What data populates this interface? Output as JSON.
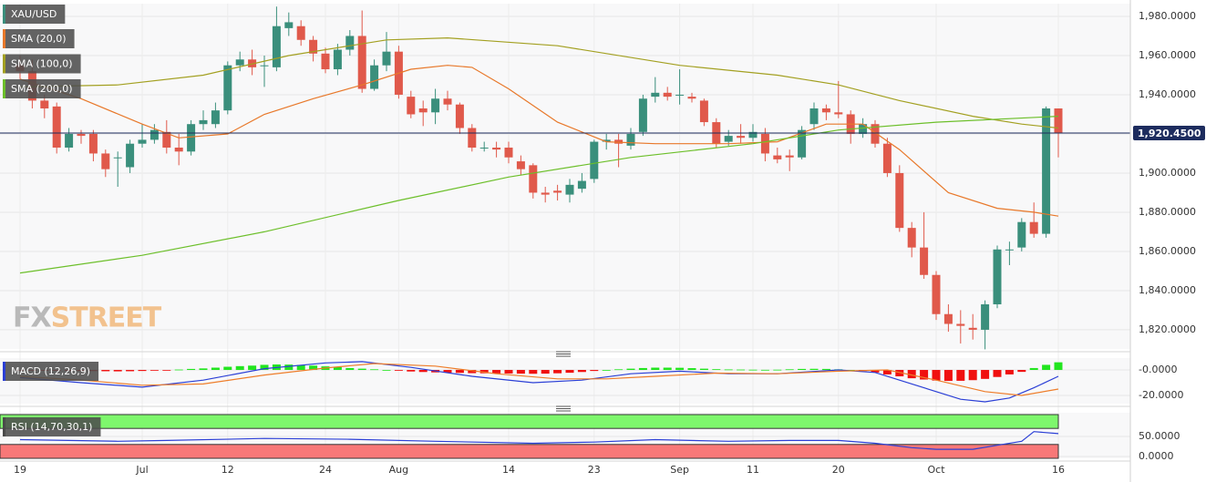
{
  "chart_data": [
    {
      "type": "candlestick",
      "title": "XAU/USD",
      "categories": [
        "19",
        null,
        null,
        null,
        null,
        null,
        null,
        null,
        null,
        null,
        "Jul",
        null,
        null,
        null,
        null,
        null,
        null,
        "12",
        null,
        null,
        null,
        null,
        null,
        null,
        null,
        "24",
        null,
        null,
        null,
        null,
        null,
        "Aug",
        null,
        null,
        null,
        null,
        null,
        null,
        null,
        null,
        "14",
        null,
        null,
        null,
        null,
        null,
        null,
        "23",
        null,
        null,
        null,
        null,
        null,
        null,
        "Sep",
        null,
        null,
        null,
        null,
        null,
        "11",
        null,
        null,
        null,
        null,
        null,
        null,
        "20",
        null,
        null,
        null,
        null,
        null,
        null,
        null,
        "Oct",
        null,
        null,
        null,
        null,
        null,
        null,
        null,
        null,
        null,
        "16"
      ],
      "open": [
        1955,
        1952,
        1937,
        1934,
        1913,
        1920,
        1920,
        1910,
        1908,
        1903,
        1915,
        1917,
        1921,
        1913,
        1911,
        1925,
        1925,
        1932,
        1955,
        1958,
        1955,
        1954,
        1974,
        1975,
        1968,
        1961,
        1953,
        1963,
        1970,
        1943,
        1955,
        1962,
        1939,
        1933,
        1931,
        1938,
        1935,
        1923,
        1913,
        1913,
        1913,
        1906,
        1904,
        1890,
        1891,
        1889,
        1892,
        1897,
        1916,
        1917,
        1914,
        1921,
        1939,
        1941,
        1940,
        1939,
        1937,
        1926,
        1916,
        1919,
        1918,
        1920,
        1909,
        1909,
        1908,
        1925,
        1933,
        1931,
        1930,
        1920,
        1925,
        1915,
        1900,
        1872,
        1862,
        1848,
        1828,
        1823,
        1821,
        1820,
        1833,
        1861,
        1862,
        1875,
        1869,
        1933
      ],
      "high": [
        1960,
        1958,
        1940,
        1936,
        1923,
        1922,
        1922,
        1912,
        1911,
        1917,
        1925,
        1925,
        1927,
        1920,
        1927,
        1932,
        1936,
        1957,
        1962,
        1963,
        1960,
        1985,
        1982,
        1978,
        1970,
        1964,
        1966,
        1973,
        1983,
        1958,
        1972,
        1965,
        1942,
        1937,
        1943,
        1942,
        1936,
        1925,
        1916,
        1916,
        1916,
        1909,
        1905,
        1893,
        1894,
        1897,
        1900,
        1917,
        1920,
        1920,
        1923,
        1940,
        1949,
        1944,
        1953,
        1941,
        1938,
        1928,
        1922,
        1925,
        1925,
        1923,
        1913,
        1912,
        1924,
        1936,
        1935,
        1947,
        1932,
        1928,
        1927,
        1918,
        1904,
        1875,
        1880,
        1850,
        1833,
        1830,
        1828,
        1835,
        1863,
        1865,
        1877,
        1885,
        1934,
        1933
      ],
      "low": [
        1948,
        1933,
        1928,
        1910,
        1911,
        1915,
        1906,
        1898,
        1893,
        1900,
        1913,
        1915,
        1910,
        1904,
        1909,
        1922,
        1923,
        1930,
        1952,
        1950,
        1944,
        1952,
        1970,
        1965,
        1957,
        1951,
        1950,
        1960,
        1941,
        1942,
        1952,
        1938,
        1928,
        1924,
        1925,
        1932,
        1920,
        1911,
        1911,
        1908,
        1905,
        1899,
        1887,
        1885,
        1886,
        1885,
        1890,
        1895,
        1912,
        1903,
        1912,
        1919,
        1936,
        1937,
        1935,
        1936,
        1924,
        1913,
        1914,
        1915,
        1916,
        1906,
        1905,
        1901,
        1907,
        1922,
        1927,
        1928,
        1915,
        1918,
        1913,
        1898,
        1870,
        1857,
        1846,
        1825,
        1819,
        1813,
        1815,
        1810,
        1831,
        1853,
        1860,
        1867,
        1867,
        1908
      ],
      "close": [
        1952,
        1937,
        1933,
        1913,
        1920,
        1919,
        1910,
        1902,
        1908,
        1915,
        1917,
        1922,
        1913,
        1911,
        1925,
        1927,
        1932,
        1955,
        1958,
        1954,
        1955,
        1975,
        1977,
        1968,
        1961,
        1953,
        1963,
        1970,
        1943,
        1955,
        1962,
        1940,
        1930,
        1931,
        1938,
        1935,
        1923,
        1913,
        1913,
        1912,
        1908,
        1902,
        1890,
        1889,
        1890,
        1894,
        1896,
        1916,
        1917,
        1915,
        1920,
        1938,
        1941,
        1939,
        1940,
        1938,
        1926,
        1915,
        1919,
        1918,
        1921,
        1910,
        1907,
        1908,
        1922,
        1933,
        1931,
        1930,
        1920,
        1925,
        1915,
        1900,
        1872,
        1862,
        1848,
        1828,
        1823,
        1822,
        1820,
        1833,
        1861,
        1861,
        1875,
        1869,
        1933,
        1920.45
      ],
      "up_color": "#3a8f7c",
      "down_color": "#e0594b",
      "ylim": [
        1810.2,
        1986.5
      ],
      "yticks": [
        {
          "value": 1820,
          "label": "1,820.0000"
        },
        {
          "value": 1840,
          "label": "1,840.0000"
        },
        {
          "value": 1860,
          "label": "1,860.0000"
        },
        {
          "value": 1880,
          "label": "1,880.0000"
        },
        {
          "value": 1900,
          "label": "1,900.0000"
        },
        {
          "value": 1920,
          "label": "1,920.0000"
        },
        {
          "value": 1940,
          "label": "1,940.0000"
        },
        {
          "value": 1960,
          "label": "1,960.0000"
        },
        {
          "value": 1980,
          "label": "1,980.0000"
        }
      ],
      "grid": true,
      "last_price": {
        "value": 1920.45,
        "label": "1,920.4500"
      },
      "last_price_color": "#1d2c5e",
      "lines": [
        {
          "name": "SMA (20,0)",
          "color": "#e8782a",
          "x": [
            0,
            5,
            10,
            13,
            17,
            20,
            24,
            28,
            32,
            35,
            37,
            40,
            44,
            48,
            52,
            58,
            62,
            66,
            69,
            72,
            76,
            80,
            83,
            85
          ],
          "values": [
            1948,
            1938,
            1925,
            1918,
            1920,
            1930,
            1938,
            1945,
            1953,
            1955,
            1954,
            1943,
            1926,
            1916,
            1915,
            1915,
            1916,
            1925,
            1925,
            1912,
            1890,
            1882,
            1880,
            1878
          ]
        },
        {
          "name": "SMA (100,0)",
          "color": "#a3a021",
          "x": [
            0,
            8,
            15,
            22,
            30,
            35,
            44,
            54,
            62,
            67,
            72,
            78,
            82,
            85
          ],
          "values": [
            1944,
            1945,
            1950,
            1960,
            1968,
            1969,
            1965,
            1955,
            1950,
            1945,
            1937,
            1929,
            1925,
            1923
          ]
        },
        {
          "name": "SMA (200,0)",
          "color": "#6cbf2a",
          "x": [
            0,
            10,
            20,
            31,
            40,
            50,
            60,
            67,
            75,
            85
          ],
          "values": [
            1849,
            1858,
            1870,
            1886,
            1898,
            1908,
            1915,
            1922,
            1926,
            1929
          ]
        }
      ],
      "watermark": [
        "FX",
        "STREET"
      ]
    },
    {
      "type": "macd",
      "title": "MACD (12,26,9)",
      "title_color": "#2b3fd6",
      "histogram": [
        -0.5,
        -0.5,
        -0.6,
        -0.6,
        -0.7,
        -0.8,
        -0.9,
        -1,
        -1.1,
        -1,
        -0.8,
        -0.5,
        -0.2,
        0.3,
        0.8,
        1.2,
        1.8,
        2.5,
        3,
        3.4,
        4,
        4.3,
        4.2,
        3.9,
        3.4,
        2.8,
        2.2,
        1.5,
        1,
        0.5,
        0,
        -0.6,
        -1.2,
        -1.6,
        -1.9,
        -2.1,
        -2.3,
        -2.5,
        -2.6,
        -2.7,
        -2.8,
        -2.9,
        -3,
        -2.9,
        -2.6,
        -2.2,
        -1.6,
        -0.8,
        0,
        0.5,
        1,
        1.5,
        1.8,
        1.8,
        1.7,
        1.4,
        1,
        0.6,
        0.4,
        0.3,
        0.2,
        0.1,
        0.2,
        0.5,
        0.8,
        0.9,
        0.8,
        0.5,
        0,
        -0.8,
        -2,
        -3.5,
        -5,
        -6.5,
        -7.5,
        -8.3,
        -8.6,
        -8.5,
        -8,
        -7,
        -5.5,
        -3.5,
        -1.5,
        1.5,
        4,
        6
      ],
      "up_color": "#22e51f",
      "down_color": "#f01010",
      "lines": [
        {
          "color": "#2b3fd6",
          "x": [
            0,
            5,
            10,
            15,
            20,
            25,
            28,
            32,
            37,
            42,
            46,
            50,
            54,
            58,
            62,
            67,
            70,
            74,
            77,
            79,
            81,
            83,
            85
          ],
          "values": [
            -6,
            -10,
            -13.5,
            -8,
            1,
            5.5,
            6.5,
            2,
            -5,
            -10,
            -8,
            -3,
            -1,
            -3,
            -3,
            0,
            -2,
            -14,
            -23,
            -25,
            -22,
            -14,
            -5
          ]
        },
        {
          "color": "#ee7d2a",
          "x": [
            0,
            5,
            10,
            15,
            20,
            25,
            29,
            34,
            39,
            44,
            48,
            52,
            57,
            62,
            67,
            71,
            75,
            79,
            82,
            85
          ],
          "values": [
            -5,
            -8,
            -12,
            -11,
            -4,
            1.5,
            5,
            3,
            -3,
            -7,
            -7,
            -5,
            -2.5,
            -3,
            -1,
            0,
            -8,
            -17,
            -20,
            -15
          ]
        }
      ],
      "ylim": [
        -26.4,
        9.3
      ],
      "yticks": [
        {
          "value": 0,
          "label": "-0.0000"
        },
        {
          "value": -20,
          "label": "-20.0000"
        }
      ]
    },
    {
      "type": "rsi",
      "title": "RSI (14,70,30,1)",
      "title_color": "#4a4a4a",
      "overbought": 70,
      "oversold": 30,
      "overbought_color": "#7ef76d",
      "oversold_color": "#f87878",
      "lines": [
        {
          "color": "#2b3fd6",
          "x": [
            0,
            8,
            12,
            20,
            27,
            34,
            42,
            47,
            52,
            58,
            63,
            67,
            70,
            73,
            75,
            78,
            80,
            82,
            83,
            85
          ],
          "values": [
            42,
            38,
            40,
            45,
            43,
            38,
            33,
            36,
            42,
            38,
            40,
            40,
            33,
            22,
            18,
            18,
            28,
            38,
            62,
            57
          ]
        }
      ],
      "ylim": [
        -4.5,
        109
      ],
      "yticks": [
        {
          "value": 50,
          "label": "50.0000"
        },
        {
          "value": 0,
          "label": "0.0000"
        }
      ]
    }
  ]
}
